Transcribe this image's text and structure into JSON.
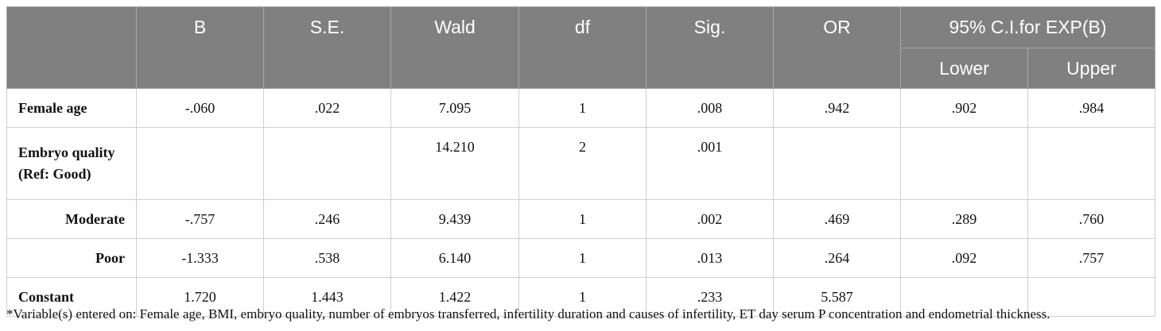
{
  "table": {
    "headers": {
      "b": "B",
      "se": "S.E.",
      "wald": "Wald",
      "df": "df",
      "sig": "Sig.",
      "or": "OR",
      "ci": "95% C.I.for EXP(B)",
      "lower": "Lower",
      "upper": "Upper"
    },
    "rows": [
      {
        "label": "Female age",
        "b": "-.060",
        "se": ".022",
        "wald": "7.095",
        "df": "1",
        "sig": ".008",
        "or": ".942",
        "lower": ".902",
        "upper": ".984"
      },
      {
        "label": "Embryo quality",
        "label2": "(Ref: Good)",
        "b": "",
        "se": "",
        "wald": "14.210",
        "df": "2",
        "sig": ".001",
        "or": "",
        "lower": "",
        "upper": ""
      },
      {
        "label": "Moderate",
        "b": "-.757",
        "se": ".246",
        "wald": "9.439",
        "df": "1",
        "sig": ".002",
        "or": ".469",
        "lower": ".289",
        "upper": ".760"
      },
      {
        "label": "Poor",
        "b": "-1.333",
        "se": ".538",
        "wald": "6.140",
        "df": "1",
        "sig": ".013",
        "or": ".264",
        "lower": ".092",
        "upper": ".757"
      },
      {
        "label": "Constant",
        "b": "1.720",
        "se": "1.443",
        "wald": "1.422",
        "df": "1",
        "sig": ".233",
        "or": "5.587",
        "lower": "",
        "upper": ""
      }
    ]
  },
  "footnote": "*Variable(s) entered on: Female age, BMI, embryo quality, number of embryos transferred, infertility duration and causes of infertility, ET day serum P concentration and endometrial thickness."
}
